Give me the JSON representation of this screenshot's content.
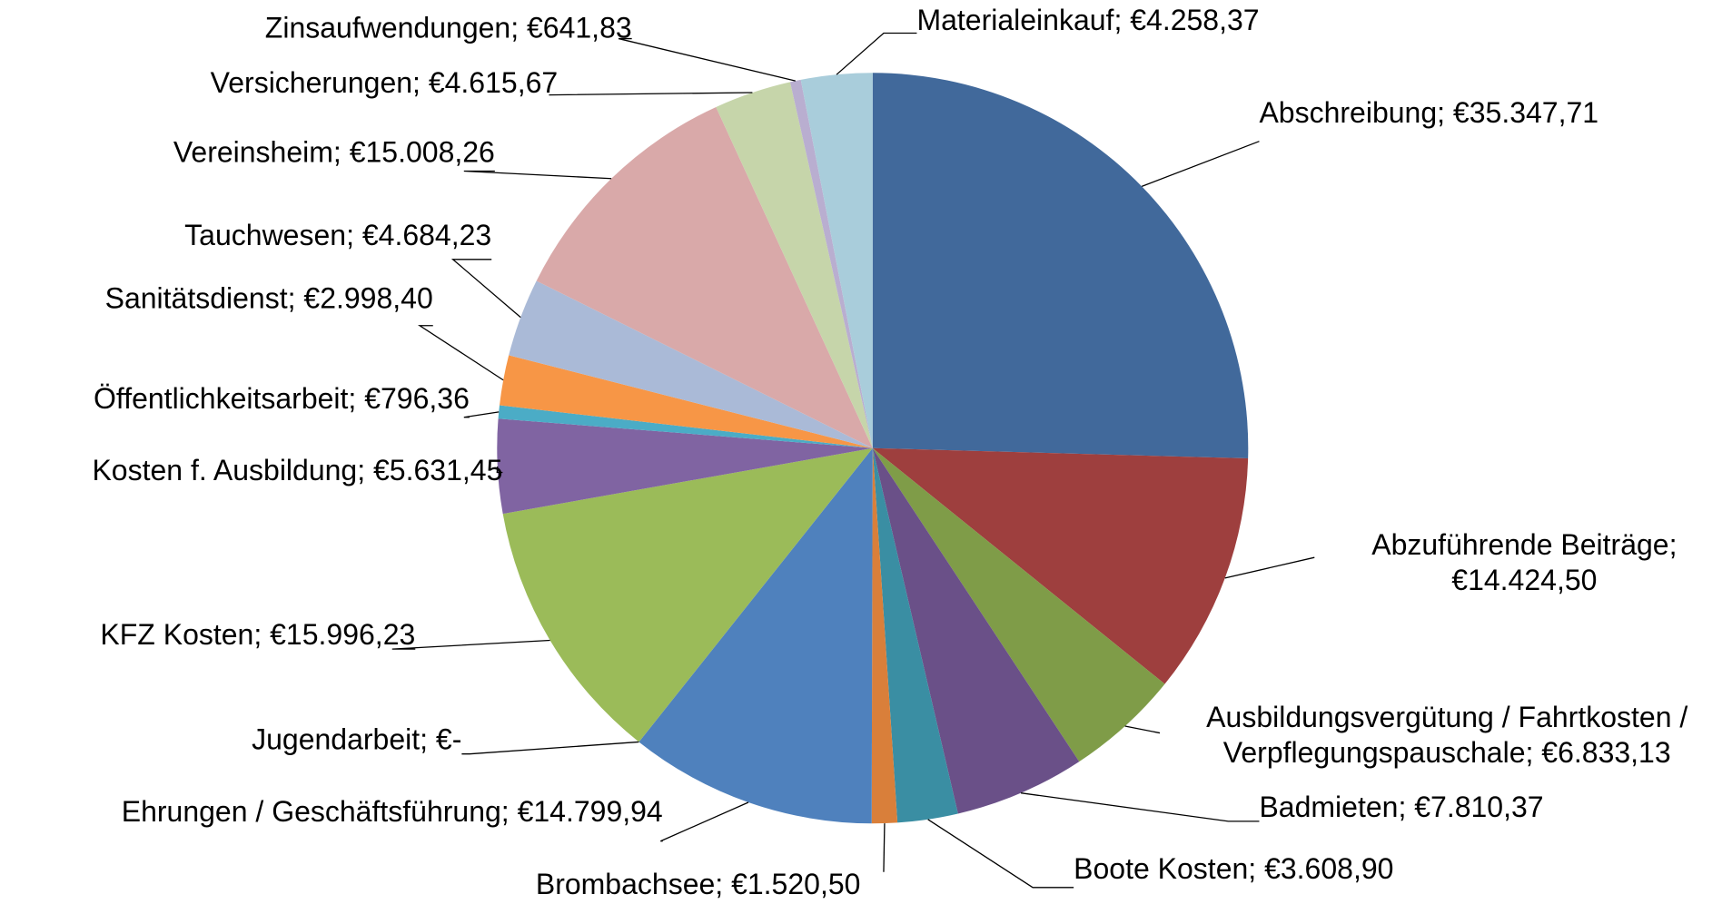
{
  "chart_data": {
    "type": "pie",
    "categories": [
      "Abschreibung",
      "Abzuführende Beiträge",
      "Ausbildungsvergütung / Fahrtkosten / Verpflegungspauschale",
      "Badmieten",
      "Boote Kosten",
      "Brombachsee",
      "Ehrungen / Geschäftsführung",
      "Jugendarbeit",
      "KFZ Kosten",
      "Kosten f. Ausbildung",
      "Öffentlichkeitsarbeit",
      "Sanitätsdienst",
      "Tauchwesen",
      "Vereinsheim",
      "Versicherungen",
      "Zinsaufwendungen",
      "Materialeinkauf"
    ],
    "values": [
      35347.71,
      14424.5,
      6833.13,
      7810.37,
      3608.9,
      1520.5,
      14799.94,
      0,
      15996.23,
      5631.45,
      796.36,
      2998.4,
      4684.23,
      15008.26,
      4615.67,
      641.83,
      4258.37
    ],
    "value_labels": [
      "Abschreibung;  €35.347,71",
      "Abzuführende Beiträge;\n€14.424,50",
      "Ausbildungsvergütung / Fahrtkosten /\nVerpflegungspauschale;  €6.833,13",
      "Badmieten;  €7.810,37",
      "Boote Kosten;  €3.608,90",
      "Brombachsee;  €1.520,50",
      "Ehrungen / Geschäftsführung;  €14.799,94",
      "Jugendarbeit;  €-",
      "KFZ Kosten;  €15.996,23",
      "Kosten f. Ausbildung;  €5.631,45",
      "Öffentlichkeitsarbeit;  €796,36",
      "Sanitätsdienst;  €2.998,40",
      "Tauchwesen;  €4.684,23",
      "Vereinsheim;  €15.008,26",
      "Versicherungen;  €4.615,67",
      "Zinsaufwendungen;  €641,83",
      "Materialeinkauf;  €4.258,37"
    ],
    "colors": [
      "#41699b",
      "#9e3f3e",
      "#7f9c48",
      "#6a5088",
      "#3a8ea3",
      "#d97f3a",
      "#4f81bd",
      "#c0504d",
      "#9bbb59",
      "#8064a2",
      "#4bacc6",
      "#f79646",
      "#aabad7",
      "#d9a9a9",
      "#c6d5aa",
      "#b9aed0",
      "#a9cddb"
    ]
  }
}
